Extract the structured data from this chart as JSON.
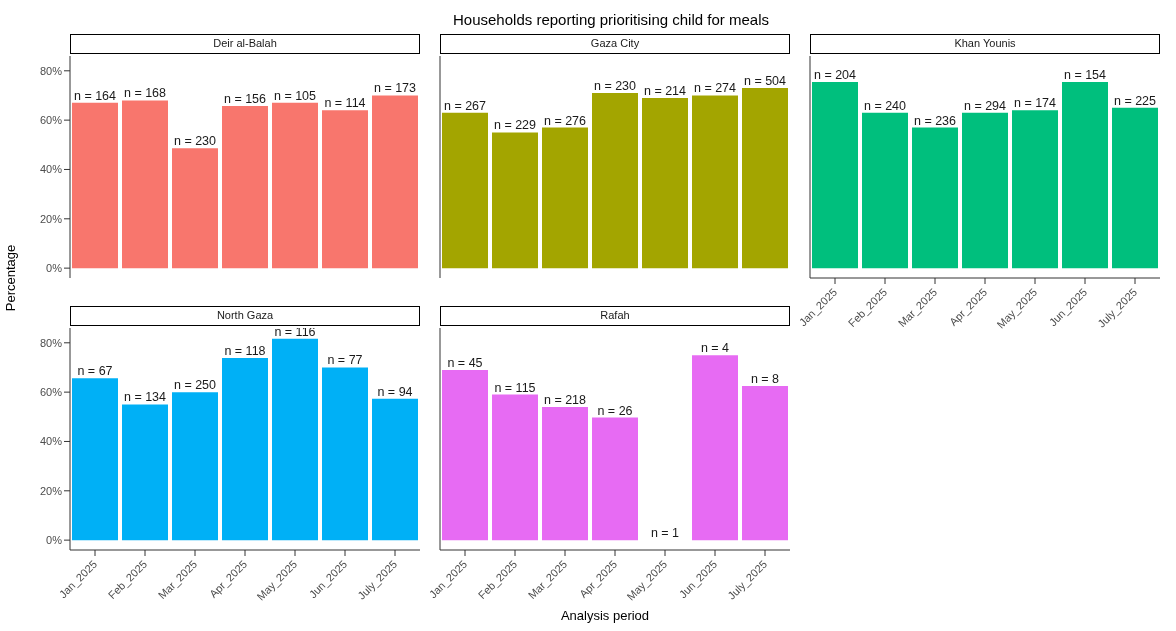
{
  "chart_data": [
    {
      "type": "bar",
      "subtitle": "Deir al-Balah",
      "categories": [
        "Jan_2025",
        "Feb_2025",
        "Mar_2025",
        "Apr_2025",
        "May_2025",
        "Jun_2025",
        "July_2025"
      ],
      "values": [
        67,
        68,
        48.6,
        65.7,
        67,
        64,
        70
      ],
      "color": "#f8766d",
      "ylim": [
        -4,
        86
      ],
      "yticks": [
        {
          "value": 0,
          "label": "0%"
        },
        {
          "value": 20,
          "label": "20%"
        },
        {
          "value": 40,
          "label": "40%"
        },
        {
          "value": 60,
          "label": "60%"
        },
        {
          "value": 80,
          "label": "80%"
        }
      ],
      "tick_labels": "y",
      "annotations": [
        {
          "text": "n = 164",
          "x": "Jan_2025",
          "y": 67
        },
        {
          "text": "n = 168",
          "x": "Feb_2025",
          "y": 68
        },
        {
          "text": "n = 230",
          "x": "Mar_2025",
          "y": 48.6
        },
        {
          "text": "n = 156",
          "x": "Apr_2025",
          "y": 65.7
        },
        {
          "text": "n = 105",
          "x": "May_2025",
          "y": 67
        },
        {
          "text": "n = 114",
          "x": "Jun_2025",
          "y": 64
        },
        {
          "text": "n = 173",
          "x": "July_2025",
          "y": 70
        }
      ]
    },
    {
      "type": "bar",
      "title": "Households reporting prioritising child for meals",
      "subtitle": "Gaza City",
      "categories": [
        "Jan_2025",
        "Feb_2025",
        "Mar_2025",
        "Apr_2025",
        "May_2025",
        "Jun_2025",
        "July_2025"
      ],
      "values": [
        63,
        55,
        57,
        71,
        69,
        70,
        73
      ],
      "color": "#a3a500",
      "ylim": [
        -4,
        86
      ],
      "tick_labels": false,
      "annotations": [
        {
          "text": "n = 267",
          "x": "Jan_2025",
          "y": 63
        },
        {
          "text": "n = 229",
          "x": "Feb_2025",
          "y": 55
        },
        {
          "text": "n = 276",
          "x": "Mar_2025",
          "y": 57
        },
        {
          "text": "n = 230",
          "x": "Apr_2025",
          "y": 71
        },
        {
          "text": "n = 214",
          "x": "May_2025",
          "y": 69
        },
        {
          "text": "n = 274",
          "x": "Jun_2025",
          "y": 70
        },
        {
          "text": "n = 504",
          "x": "July_2025",
          "y": 73
        }
      ]
    },
    {
      "type": "bar",
      "subtitle": "Khan Younis",
      "categories": [
        "Jan_2025",
        "Feb_2025",
        "Mar_2025",
        "Apr_2025",
        "May_2025",
        "Jun_2025",
        "July_2025"
      ],
      "values": [
        75.5,
        63,
        57,
        63,
        64,
        75.5,
        65
      ],
      "color": "#00bf7d",
      "ylim": [
        -4,
        86
      ],
      "tick_labels": "x",
      "annotations": [
        {
          "text": "n = 204",
          "x": "Jan_2025",
          "y": 75.5
        },
        {
          "text": "n = 240",
          "x": "Feb_2025",
          "y": 63
        },
        {
          "text": "n = 236",
          "x": "Mar_2025",
          "y": 57
        },
        {
          "text": "n = 294",
          "x": "Apr_2025",
          "y": 63
        },
        {
          "text": "n = 174",
          "x": "May_2025",
          "y": 64
        },
        {
          "text": "n = 154",
          "x": "Jun_2025",
          "y": 75.5
        },
        {
          "text": "n = 225",
          "x": "July_2025",
          "y": 65
        }
      ]
    },
    {
      "type": "bar",
      "subtitle": "North Gaza",
      "ylabel": "Percentage",
      "categories": [
        "Jan_2025",
        "Feb_2025",
        "Mar_2025",
        "Apr_2025",
        "May_2025",
        "Jun_2025",
        "July_2025"
      ],
      "values": [
        65.6,
        55,
        60,
        73.8,
        81.6,
        70,
        57.3
      ],
      "color": "#00b0f6",
      "ylim": [
        -4,
        86
      ],
      "yticks": [
        {
          "value": 0,
          "label": "0%"
        },
        {
          "value": 20,
          "label": "20%"
        },
        {
          "value": 40,
          "label": "40%"
        },
        {
          "value": 60,
          "label": "60%"
        },
        {
          "value": 80,
          "label": "80%"
        }
      ],
      "annotations": [
        {
          "text": "n = 67",
          "x": "Jan_2025",
          "y": 65.6
        },
        {
          "text": "n = 134",
          "x": "Feb_2025",
          "y": 55
        },
        {
          "text": "n = 250",
          "x": "Mar_2025",
          "y": 60
        },
        {
          "text": "n = 118",
          "x": "Apr_2025",
          "y": 73.8
        },
        {
          "text": "n = 116",
          "x": "May_2025",
          "y": 81.6
        },
        {
          "text": "n = 77",
          "x": "Jun_2025",
          "y": 70
        },
        {
          "text": "n = 94",
          "x": "July_2025",
          "y": 57.3
        }
      ]
    },
    {
      "type": "bar",
      "subtitle": "Rafah",
      "xlabel": "Analysis period",
      "categories": [
        "Jan_2025",
        "Feb_2025",
        "Mar_2025",
        "Apr_2025",
        "May_2025",
        "Jun_2025",
        "July_2025"
      ],
      "values": [
        69,
        59,
        54,
        49.7,
        0,
        75,
        62.5
      ],
      "color": "#e76bf3",
      "ylim": [
        -4,
        86
      ],
      "tick_labels": "x",
      "annotations": [
        {
          "text": "n = 45",
          "x": "Jan_2025",
          "y": 69
        },
        {
          "text": "n = 115",
          "x": "Feb_2025",
          "y": 59
        },
        {
          "text": "n = 218",
          "x": "Mar_2025",
          "y": 54
        },
        {
          "text": "n = 26",
          "x": "Apr_2025",
          "y": 49.7
        },
        {
          "text": "n = 1",
          "x": "May_2025",
          "y": 0
        },
        {
          "text": "n = 4",
          "x": "Jun_2025",
          "y": 75
        },
        {
          "text": "n = 8",
          "x": "July_2025",
          "y": 62.5
        }
      ]
    }
  ]
}
